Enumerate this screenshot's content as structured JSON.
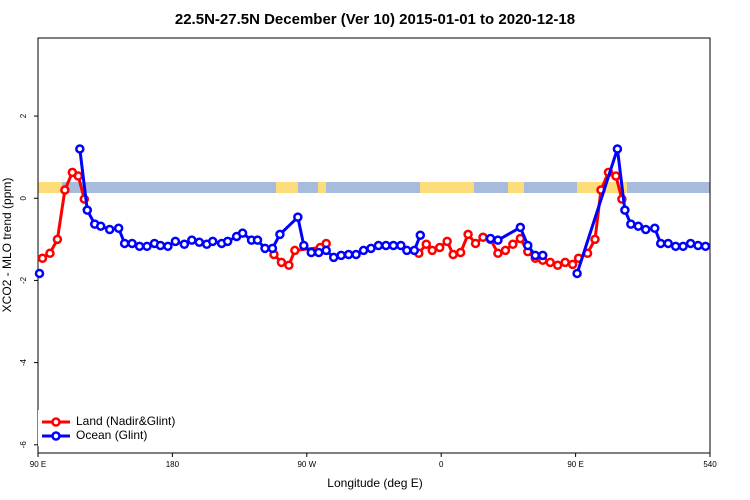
{
  "chart_data": {
    "type": "line",
    "title": "22.5N-27.5N December (Ver 10)   2015-01-01 to 2020-12-18",
    "x_label": "Longitude (deg E)",
    "y_label": "XCO2 - MLO trend (ppm)",
    "xlim": [
      90,
      540
    ],
    "ylim": [
      -6.2,
      3.9
    ],
    "xticks": [
      {
        "value": 90,
        "label": "90 E"
      },
      180,
      {
        "value": 270,
        "label": "90 W"
      },
      {
        "value": 360,
        "label": "0"
      },
      {
        "value": 450,
        "label": "90 E"
      },
      540
    ],
    "yticks": [
      -6,
      -4,
      -2,
      0,
      2
    ],
    "legend": "bottom-left",
    "series": [
      {
        "name": "Land (Nadir&Glint)",
        "color": "#ff0000",
        "x": [
          93,
          98,
          103,
          108,
          113,
          117,
          121,
          null,
          248,
          253,
          258,
          262,
          279,
          283,
          null,
          345,
          350,
          354,
          359,
          364,
          368,
          373,
          378,
          383,
          388,
          393,
          398,
          403,
          408,
          413,
          418,
          423,
          428,
          433,
          438,
          443,
          448,
          452,
          458,
          463,
          467,
          472,
          477,
          481
        ],
        "values": [
          -1.46,
          -1.34,
          -1.0,
          0.2,
          0.63,
          0.54,
          -0.02,
          null,
          -1.37,
          -1.56,
          -1.63,
          -1.27,
          -1.2,
          -1.1,
          null,
          -1.34,
          -1.12,
          -1.27,
          -1.2,
          -1.05,
          -1.37,
          -1.32,
          -0.88,
          -1.1,
          -0.95,
          -1.0,
          -1.34,
          -1.27,
          -1.12,
          -0.98,
          -1.3,
          -1.46,
          -1.51,
          -1.56,
          -1.63,
          -1.56,
          -1.61,
          -1.46,
          -1.34,
          -1.0,
          0.2,
          0.63,
          0.54,
          -0.02
        ]
      },
      {
        "name": "Ocean (Glint)",
        "color": "#0000ff",
        "x": [
          91,
          null,
          118,
          123,
          128,
          132,
          138,
          144,
          148,
          153,
          158,
          163,
          168,
          172,
          177,
          182,
          188,
          193,
          198,
          203,
          207,
          213,
          217,
          223,
          227,
          233,
          237,
          242,
          247,
          252,
          264,
          268,
          273,
          278,
          283,
          288,
          293,
          298,
          303,
          308,
          313,
          318,
          323,
          328,
          333,
          337,
          342,
          346,
          null,
          393,
          398,
          413,
          418,
          423,
          428,
          null,
          451,
          478,
          483,
          487,
          492,
          497,
          503,
          507,
          512,
          517,
          522,
          527,
          532,
          537
        ],
        "values": [
          -1.83,
          null,
          1.2,
          -0.29,
          -0.63,
          -0.68,
          -0.76,
          -0.73,
          -1.1,
          -1.1,
          -1.17,
          -1.17,
          -1.1,
          -1.15,
          -1.17,
          -1.05,
          -1.12,
          -1.02,
          -1.07,
          -1.12,
          -1.05,
          -1.1,
          -1.05,
          -0.93,
          -0.85,
          -1.02,
          -1.02,
          -1.22,
          -1.22,
          -0.88,
          -0.46,
          -1.15,
          -1.32,
          -1.32,
          -1.27,
          -1.44,
          -1.39,
          -1.37,
          -1.37,
          -1.27,
          -1.22,
          -1.15,
          -1.15,
          -1.15,
          -1.15,
          -1.27,
          -1.27,
          -0.9,
          null,
          -0.98,
          -1.02,
          -0.71,
          -1.15,
          -1.39,
          -1.39,
          null,
          -1.83,
          1.2,
          -0.29,
          -0.63,
          -0.68,
          -0.76,
          -0.73,
          -1.1,
          -1.1,
          -1.17,
          -1.17,
          -1.1,
          -1.15,
          -1.17
        ]
      }
    ]
  }
}
